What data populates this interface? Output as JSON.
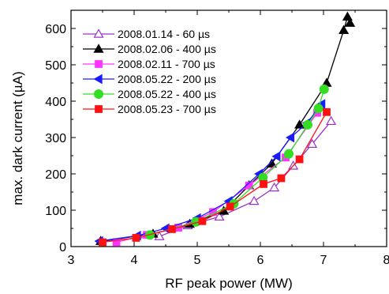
{
  "chart_data": {
    "type": "line",
    "xlabel": "RF peak power (MW)",
    "ylabel": "max. dark current (µA)",
    "xlim": [
      3,
      8
    ],
    "ylim": [
      0,
      650
    ],
    "x_ticks": [
      3,
      4,
      5,
      6,
      7,
      8
    ],
    "y_ticks": [
      0,
      100,
      200,
      300,
      400,
      500,
      600
    ],
    "x_tick_labels": [
      "3",
      "4",
      "5",
      "6",
      "7",
      "8"
    ],
    "y_tick_labels": [
      "0",
      "100",
      "200",
      "300",
      "400",
      "500",
      "600"
    ],
    "legend_position": "top-left",
    "grid": false,
    "series": [
      {
        "name": "2008.01.14 - 60 µs",
        "color": "#9933cc",
        "marker": "triangle-up-open",
        "x": [
          3.47,
          4.4,
          4.85,
          5.35,
          5.9,
          6.22,
          6.52,
          6.82,
          7.12
        ],
        "y": [
          15,
          28,
          58,
          82,
          125,
          162,
          222,
          282,
          345
        ]
      },
      {
        "name": "2008.02.06 - 400 µs",
        "color": "#000000",
        "marker": "triangle-up-filled",
        "x": [
          3.47,
          4.3,
          4.88,
          5.42,
          5.82,
          6.18,
          6.62,
          7.05,
          7.32,
          7.38,
          7.42
        ],
        "y": [
          15,
          35,
          62,
          98,
          168,
          228,
          335,
          450,
          595,
          632,
          615
        ]
      },
      {
        "name": "2008.02.11 - 700 µs",
        "color": "#ff33ff",
        "marker": "square-filled",
        "x": [
          3.72,
          4.2,
          4.7,
          5.25,
          5.82,
          6.4,
          6.9
        ],
        "y": [
          12,
          32,
          52,
          95,
          168,
          245,
          368
        ]
      },
      {
        "name": "2008.05.22 - 200 µs",
        "color": "#1a1aff",
        "marker": "triangle-left-filled",
        "x": [
          3.45,
          4.05,
          4.5,
          5.0,
          5.5,
          5.98,
          6.26,
          6.48,
          6.74,
          6.97
        ],
        "y": [
          15,
          30,
          50,
          78,
          125,
          200,
          248,
          300,
          340,
          392
        ]
      },
      {
        "name": "2008.05.22 - 400 µs",
        "color": "#33dd22",
        "marker": "circle-filled",
        "x": [
          4.25,
          4.98,
          5.58,
          6.04,
          6.45,
          6.75,
          6.92,
          7.01
        ],
        "y": [
          32,
          68,
          118,
          190,
          255,
          335,
          380,
          433
        ]
      },
      {
        "name": "2008.05.23 - 700 µs",
        "color": "#ff1111",
        "marker": "square-filled",
        "x": [
          3.5,
          4.03,
          4.6,
          5.08,
          5.52,
          6.05,
          6.33,
          6.62,
          7.05
        ],
        "y": [
          12,
          24,
          48,
          70,
          110,
          172,
          188,
          240,
          370
        ]
      }
    ]
  }
}
